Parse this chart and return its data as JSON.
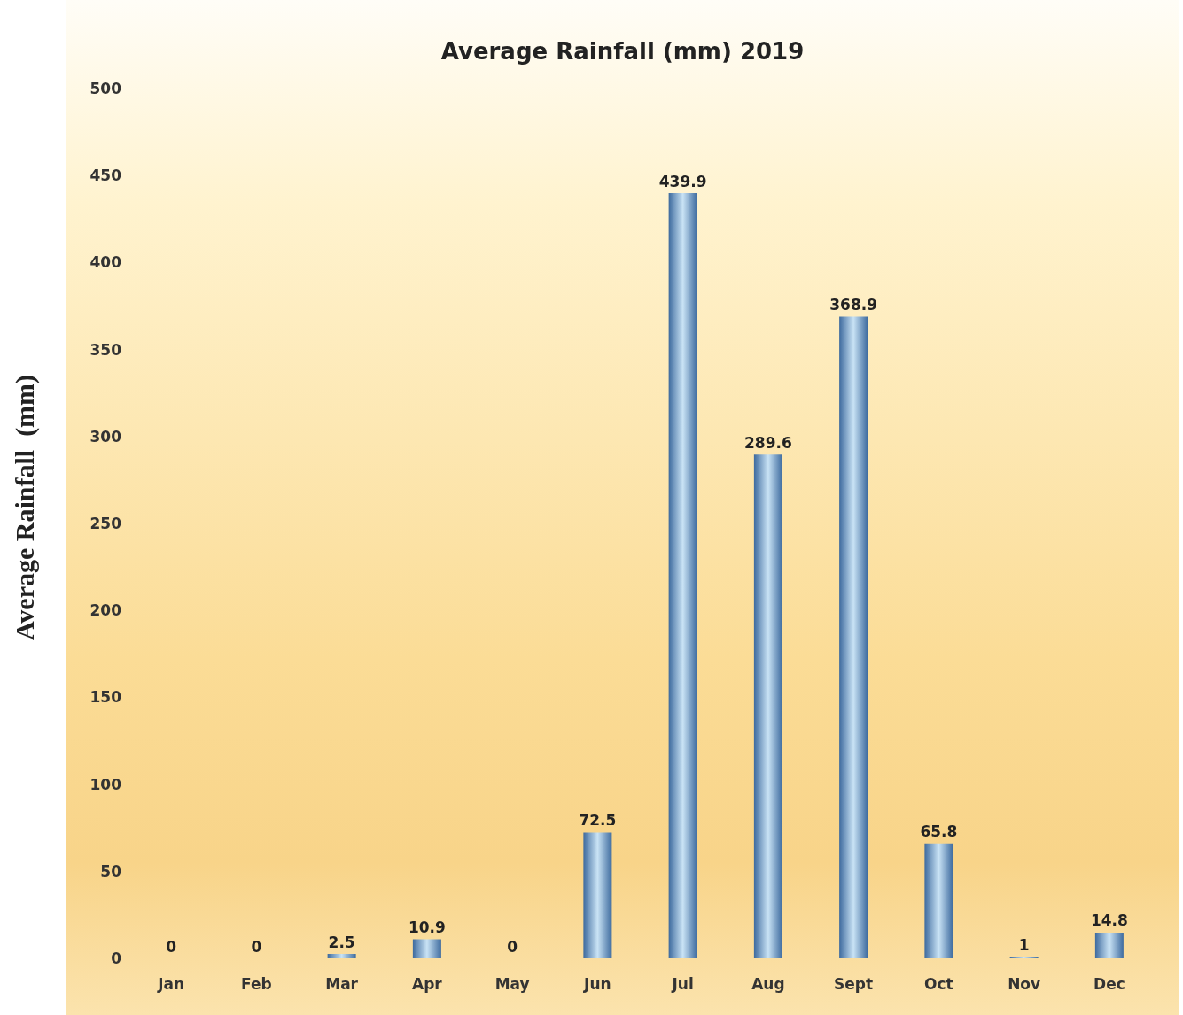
{
  "chart_data": {
    "type": "bar",
    "title": "Average Rainfall (mm) 2019",
    "ylabel": "Average Rainfall  (mm)",
    "categories": [
      "Jan",
      "Feb",
      "Mar",
      "Apr",
      "May",
      "Jun",
      "Jul",
      "Aug",
      "Sept",
      "Oct",
      "Nov",
      "Dec"
    ],
    "values": [
      0,
      0,
      2.5,
      10.9,
      0,
      72.5,
      439.9,
      289.6,
      368.9,
      65.8,
      1,
      14.8
    ],
    "color": "#3d6a9e",
    "ylim": [
      0,
      500
    ],
    "yticks": [
      0,
      50,
      100,
      150,
      200,
      250,
      300,
      350,
      400,
      450,
      500
    ],
    "grid": false,
    "data_labels": true
  }
}
